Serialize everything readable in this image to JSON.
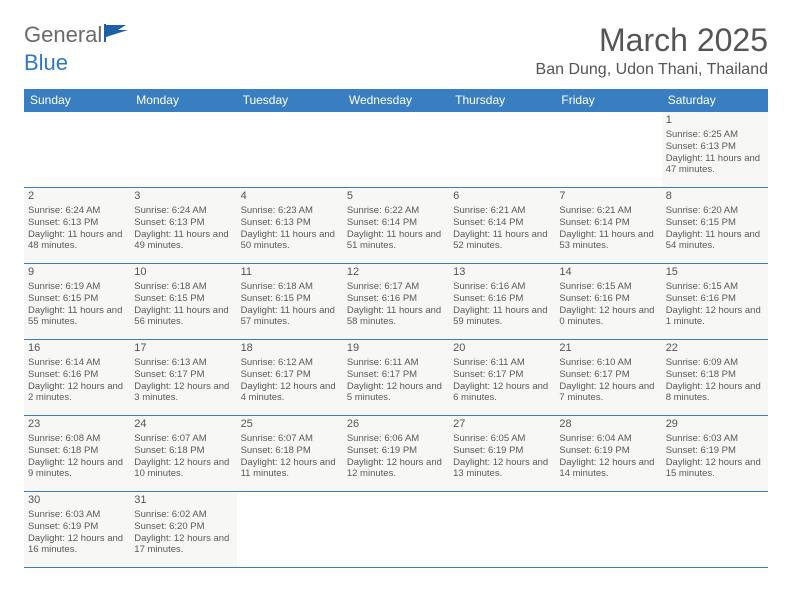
{
  "header": {
    "logo_text1": "General",
    "logo_text2": "Blue",
    "month_title": "March 2025",
    "location": "Ban Dung, Udon Thani, Thailand"
  },
  "colors": {
    "header_bg": "#3a7ec2",
    "header_text": "#ffffff",
    "cell_bg": "#f7f7f5",
    "text": "#5a5a5a",
    "logo_blue": "#2f78c2",
    "logo_gray": "#6b6b6b"
  },
  "weekdays": [
    "Sunday",
    "Monday",
    "Tuesday",
    "Wednesday",
    "Thursday",
    "Friday",
    "Saturday"
  ],
  "weeks": [
    [
      null,
      null,
      null,
      null,
      null,
      null,
      {
        "d": "1",
        "sr": "Sunrise: 6:25 AM",
        "ss": "Sunset: 6:13 PM",
        "dl": "Daylight: 11 hours and 47 minutes."
      }
    ],
    [
      {
        "d": "2",
        "sr": "Sunrise: 6:24 AM",
        "ss": "Sunset: 6:13 PM",
        "dl": "Daylight: 11 hours and 48 minutes."
      },
      {
        "d": "3",
        "sr": "Sunrise: 6:24 AM",
        "ss": "Sunset: 6:13 PM",
        "dl": "Daylight: 11 hours and 49 minutes."
      },
      {
        "d": "4",
        "sr": "Sunrise: 6:23 AM",
        "ss": "Sunset: 6:13 PM",
        "dl": "Daylight: 11 hours and 50 minutes."
      },
      {
        "d": "5",
        "sr": "Sunrise: 6:22 AM",
        "ss": "Sunset: 6:14 PM",
        "dl": "Daylight: 11 hours and 51 minutes."
      },
      {
        "d": "6",
        "sr": "Sunrise: 6:21 AM",
        "ss": "Sunset: 6:14 PM",
        "dl": "Daylight: 11 hours and 52 minutes."
      },
      {
        "d": "7",
        "sr": "Sunrise: 6:21 AM",
        "ss": "Sunset: 6:14 PM",
        "dl": "Daylight: 11 hours and 53 minutes."
      },
      {
        "d": "8",
        "sr": "Sunrise: 6:20 AM",
        "ss": "Sunset: 6:15 PM",
        "dl": "Daylight: 11 hours and 54 minutes."
      }
    ],
    [
      {
        "d": "9",
        "sr": "Sunrise: 6:19 AM",
        "ss": "Sunset: 6:15 PM",
        "dl": "Daylight: 11 hours and 55 minutes."
      },
      {
        "d": "10",
        "sr": "Sunrise: 6:18 AM",
        "ss": "Sunset: 6:15 PM",
        "dl": "Daylight: 11 hours and 56 minutes."
      },
      {
        "d": "11",
        "sr": "Sunrise: 6:18 AM",
        "ss": "Sunset: 6:15 PM",
        "dl": "Daylight: 11 hours and 57 minutes."
      },
      {
        "d": "12",
        "sr": "Sunrise: 6:17 AM",
        "ss": "Sunset: 6:16 PM",
        "dl": "Daylight: 11 hours and 58 minutes."
      },
      {
        "d": "13",
        "sr": "Sunrise: 6:16 AM",
        "ss": "Sunset: 6:16 PM",
        "dl": "Daylight: 11 hours and 59 minutes."
      },
      {
        "d": "14",
        "sr": "Sunrise: 6:15 AM",
        "ss": "Sunset: 6:16 PM",
        "dl": "Daylight: 12 hours and 0 minutes."
      },
      {
        "d": "15",
        "sr": "Sunrise: 6:15 AM",
        "ss": "Sunset: 6:16 PM",
        "dl": "Daylight: 12 hours and 1 minute."
      }
    ],
    [
      {
        "d": "16",
        "sr": "Sunrise: 6:14 AM",
        "ss": "Sunset: 6:16 PM",
        "dl": "Daylight: 12 hours and 2 minutes."
      },
      {
        "d": "17",
        "sr": "Sunrise: 6:13 AM",
        "ss": "Sunset: 6:17 PM",
        "dl": "Daylight: 12 hours and 3 minutes."
      },
      {
        "d": "18",
        "sr": "Sunrise: 6:12 AM",
        "ss": "Sunset: 6:17 PM",
        "dl": "Daylight: 12 hours and 4 minutes."
      },
      {
        "d": "19",
        "sr": "Sunrise: 6:11 AM",
        "ss": "Sunset: 6:17 PM",
        "dl": "Daylight: 12 hours and 5 minutes."
      },
      {
        "d": "20",
        "sr": "Sunrise: 6:11 AM",
        "ss": "Sunset: 6:17 PM",
        "dl": "Daylight: 12 hours and 6 minutes."
      },
      {
        "d": "21",
        "sr": "Sunrise: 6:10 AM",
        "ss": "Sunset: 6:17 PM",
        "dl": "Daylight: 12 hours and 7 minutes."
      },
      {
        "d": "22",
        "sr": "Sunrise: 6:09 AM",
        "ss": "Sunset: 6:18 PM",
        "dl": "Daylight: 12 hours and 8 minutes."
      }
    ],
    [
      {
        "d": "23",
        "sr": "Sunrise: 6:08 AM",
        "ss": "Sunset: 6:18 PM",
        "dl": "Daylight: 12 hours and 9 minutes."
      },
      {
        "d": "24",
        "sr": "Sunrise: 6:07 AM",
        "ss": "Sunset: 6:18 PM",
        "dl": "Daylight: 12 hours and 10 minutes."
      },
      {
        "d": "25",
        "sr": "Sunrise: 6:07 AM",
        "ss": "Sunset: 6:18 PM",
        "dl": "Daylight: 12 hours and 11 minutes."
      },
      {
        "d": "26",
        "sr": "Sunrise: 6:06 AM",
        "ss": "Sunset: 6:19 PM",
        "dl": "Daylight: 12 hours and 12 minutes."
      },
      {
        "d": "27",
        "sr": "Sunrise: 6:05 AM",
        "ss": "Sunset: 6:19 PM",
        "dl": "Daylight: 12 hours and 13 minutes."
      },
      {
        "d": "28",
        "sr": "Sunrise: 6:04 AM",
        "ss": "Sunset: 6:19 PM",
        "dl": "Daylight: 12 hours and 14 minutes."
      },
      {
        "d": "29",
        "sr": "Sunrise: 6:03 AM",
        "ss": "Sunset: 6:19 PM",
        "dl": "Daylight: 12 hours and 15 minutes."
      }
    ],
    [
      {
        "d": "30",
        "sr": "Sunrise: 6:03 AM",
        "ss": "Sunset: 6:19 PM",
        "dl": "Daylight: 12 hours and 16 minutes."
      },
      {
        "d": "31",
        "sr": "Sunrise: 6:02 AM",
        "ss": "Sunset: 6:20 PM",
        "dl": "Daylight: 12 hours and 17 minutes."
      },
      null,
      null,
      null,
      null,
      null
    ]
  ]
}
